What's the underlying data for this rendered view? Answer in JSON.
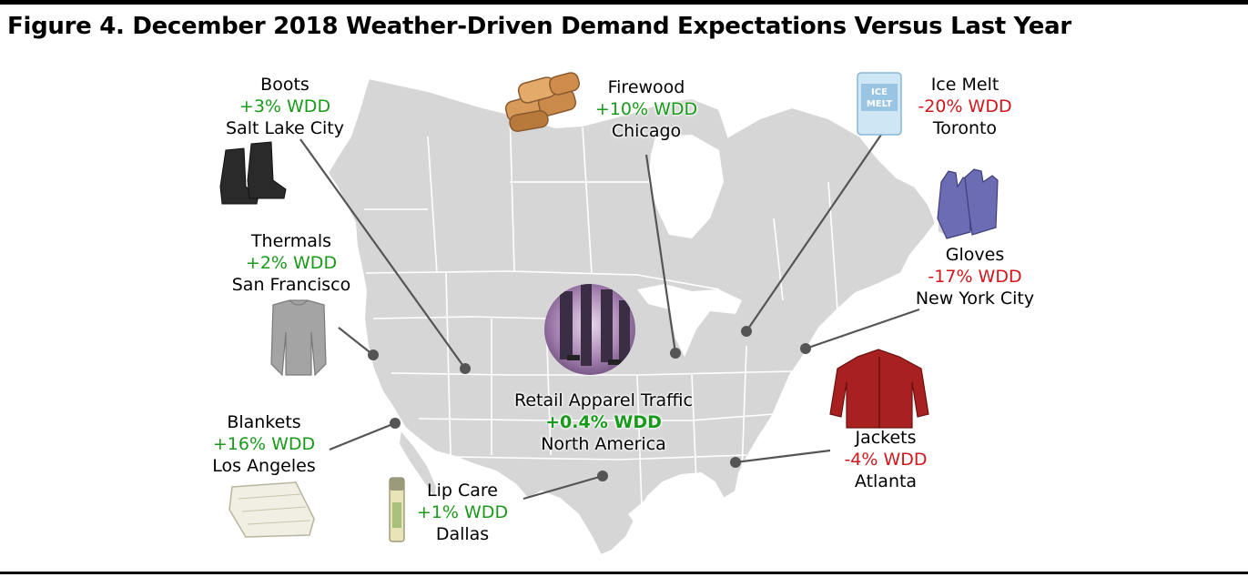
{
  "title": "Figure 4. December 2018 Weather-Driven Demand Expectations Versus Last Year",
  "colors": {
    "positive": "#1a9a1a",
    "negative": "#d0181c",
    "map_fill": "#d6d6d6",
    "map_border": "#ffffff"
  },
  "center": {
    "name": "Retail Apparel Traffic",
    "value": "+0.4% WDD",
    "region": "North America"
  },
  "callouts": {
    "boots": {
      "item": "Boots",
      "value": "+3% WDD",
      "city": "Salt Lake City"
    },
    "firewood": {
      "item": "Firewood",
      "value": "+10% WDD",
      "city": "Chicago"
    },
    "icemelt": {
      "item": "Ice Melt",
      "value": "-20% WDD",
      "city": "Toronto"
    },
    "thermals": {
      "item": "Thermals",
      "value": "+2% WDD",
      "city": "San Francisco"
    },
    "gloves": {
      "item": "Gloves",
      "value": "-17% WDD",
      "city": "New York City"
    },
    "blankets": {
      "item": "Blankets",
      "value": "+16% WDD",
      "city": "Los Angeles"
    },
    "lipcare": {
      "item": "Lip Care",
      "value": "+1% WDD",
      "city": "Dallas"
    },
    "jackets": {
      "item": "Jackets",
      "value": "-4% WDD",
      "city": "Atlanta"
    }
  },
  "icons": [
    "boots-icon",
    "firewood-icon",
    "ice-melt-icon",
    "thermal-shirt-icon",
    "gloves-icon",
    "blanket-icon",
    "lip-balm-icon",
    "jacket-icon",
    "shoppers-icon"
  ],
  "ice_melt_packaging_text": "ICE MELT"
}
